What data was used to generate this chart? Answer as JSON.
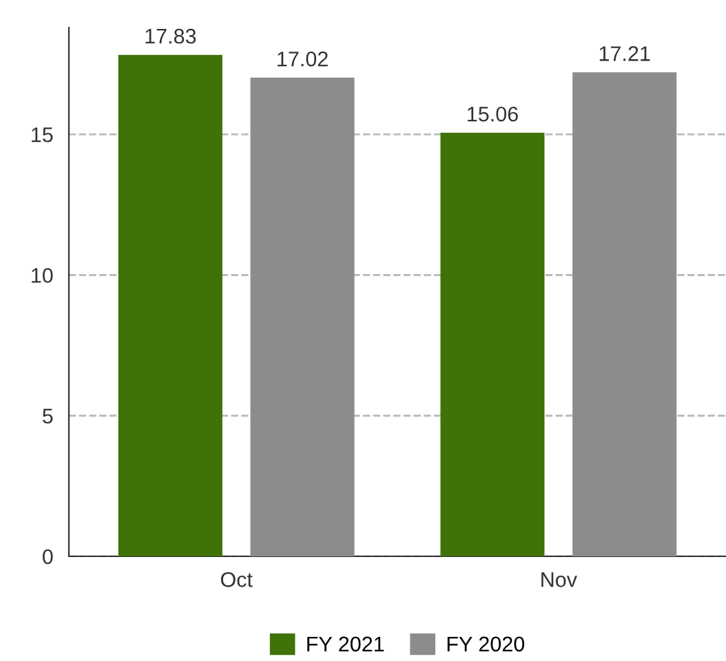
{
  "chart_data": {
    "type": "bar",
    "categories": [
      "Oct",
      "Nov"
    ],
    "series": [
      {
        "name": "FY 2021",
        "color": "#3f7208",
        "values": [
          17.83,
          15.06
        ]
      },
      {
        "name": "FY 2020",
        "color": "#8c8c8c",
        "values": [
          17.02,
          17.21
        ]
      }
    ],
    "ylim": [
      0,
      18.8
    ],
    "yticks": [
      0,
      5,
      10,
      15
    ],
    "grid": "y",
    "line_style": "dashed",
    "data_labels": true,
    "legend": "bottom"
  }
}
